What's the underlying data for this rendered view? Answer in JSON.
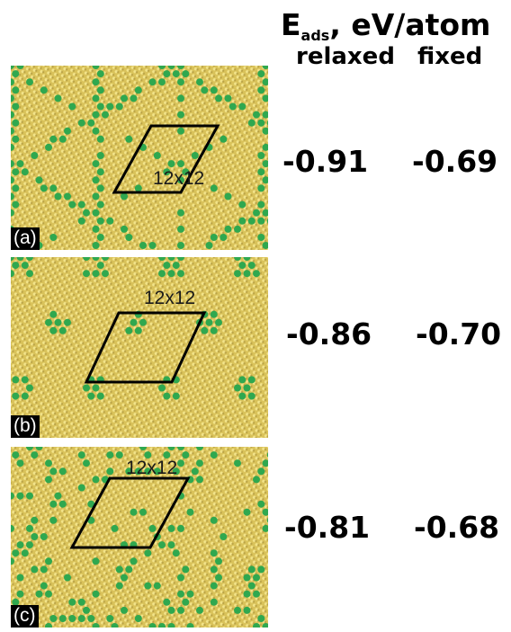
{
  "header": {
    "quantity_main": "E",
    "quantity_subscript": "ads",
    "quantity_unit": ", eV/atom",
    "col_relaxed": "relaxed",
    "col_fixed": "fixed"
  },
  "panels": [
    {
      "label": "(a)",
      "cell_label": "12x12",
      "relaxed": "-0.91",
      "fixed": "-0.69",
      "pattern": "honeycomb-lines"
    },
    {
      "label": "(b)",
      "cell_label": "12x12",
      "relaxed": "-0.86",
      "fixed": "-0.70",
      "pattern": "triangular-clusters"
    },
    {
      "label": "(c)",
      "cell_label": "12x12",
      "relaxed": "-0.81",
      "fixed": "-0.68",
      "pattern": "dispersed-atoms"
    }
  ],
  "colors": {
    "substrate": "#d9c25a",
    "substrate_light": "#f3e48a",
    "substrate_dark": "#9c8530",
    "adatom": "#2fa84f",
    "cell_outline": "#000000"
  }
}
